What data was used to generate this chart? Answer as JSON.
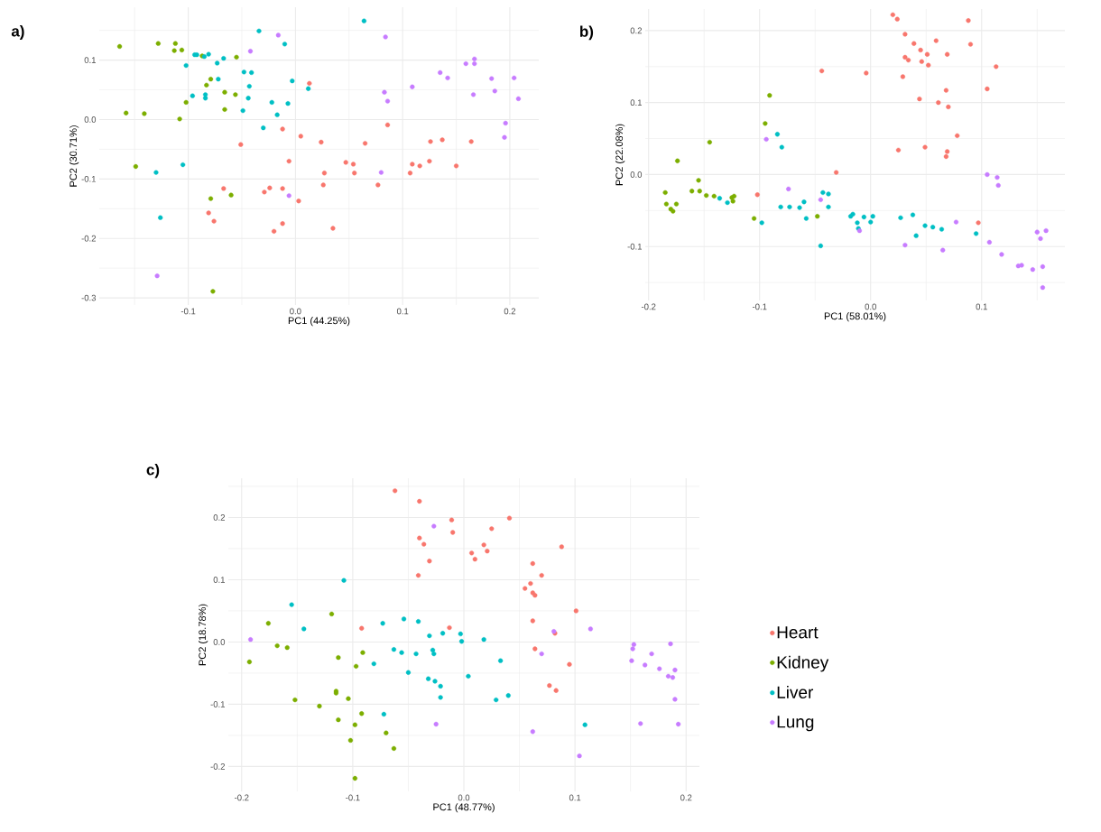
{
  "chart_data": [
    {
      "type": "scatter",
      "title": "**a)**",
      "xlabel": "PC1 (44.25%)",
      "ylabel": "PC2 (30.71%)",
      "grid": true,
      "marker": "circle",
      "legend": false,
      "xlim": [
        -0.183,
        0.227
      ],
      "ylim": [
        -0.312,
        0.189
      ],
      "xticks": [
        {
          "value": -0.1,
          "label": "-0.1"
        },
        {
          "value": 0,
          "label": "0.0"
        },
        {
          "value": 0.1,
          "label": "0.1"
        },
        {
          "value": 0.2,
          "label": "0.2"
        }
      ],
      "yticks": [
        {
          "value": -0.3,
          "label": "-0.3"
        },
        {
          "value": -0.2,
          "label": "-0.2"
        },
        {
          "value": -0.1,
          "label": "-0.1"
        },
        {
          "value": 0,
          "label": "0.0"
        },
        {
          "value": 0.1,
          "label": "0.1"
        }
      ],
      "series": [
        {
          "color": "#f8766d",
          "x": [
            0.013,
            -0.012,
            0.005,
            0.024,
            -0.051,
            -0.006,
            0.027,
            0.026,
            -0.067,
            -0.029,
            -0.024,
            -0.012,
            0.003,
            -0.081,
            -0.076,
            -0.02,
            -0.012,
            0.047,
            0.054,
            0.055,
            0.035,
            0.065,
            0.077,
            0.086,
            0.107,
            0.109,
            0.116,
            0.125,
            0.126,
            0.137,
            0.15,
            0.164
          ],
          "values": [
            0.061,
            -0.016,
            -0.028,
            -0.038,
            -0.042,
            -0.07,
            -0.09,
            -0.11,
            -0.116,
            -0.122,
            -0.115,
            -0.116,
            -0.137,
            -0.157,
            -0.171,
            -0.188,
            -0.175,
            -0.072,
            -0.075,
            -0.09,
            -0.183,
            -0.04,
            -0.11,
            -0.009,
            -0.09,
            -0.075,
            -0.078,
            -0.07,
            -0.037,
            -0.034,
            -0.078,
            -0.037
          ]
        },
        {
          "color": "#7cae00",
          "x": [
            -0.164,
            -0.128,
            -0.112,
            -0.113,
            -0.106,
            -0.087,
            -0.055,
            -0.079,
            -0.083,
            -0.066,
            -0.056,
            -0.102,
            -0.066,
            -0.158,
            -0.141,
            -0.108,
            -0.149,
            -0.079,
            -0.06,
            -0.077
          ],
          "values": [
            0.123,
            0.128,
            0.128,
            0.116,
            0.117,
            0.107,
            0.105,
            0.068,
            0.058,
            0.046,
            0.042,
            0.029,
            0.017,
            0.011,
            0.01,
            0.001,
            -0.079,
            -0.133,
            -0.127,
            -0.289
          ]
        },
        {
          "color": "#00bfc4",
          "x": [
            -0.034,
            -0.01,
            -0.094,
            -0.092,
            -0.085,
            -0.081,
            -0.073,
            -0.067,
            -0.102,
            -0.048,
            -0.041,
            -0.072,
            -0.003,
            -0.043,
            0.012,
            -0.096,
            -0.084,
            -0.084,
            -0.044,
            -0.022,
            -0.007,
            -0.049,
            -0.017,
            -0.03,
            -0.105,
            -0.13,
            -0.126,
            0.064
          ],
          "values": [
            0.149,
            0.127,
            0.109,
            0.109,
            0.106,
            0.11,
            0.095,
            0.103,
            0.091,
            0.08,
            0.079,
            0.068,
            0.065,
            0.056,
            0.052,
            0.04,
            0.042,
            0.036,
            0.036,
            0.029,
            0.027,
            0.015,
            0.008,
            -0.014,
            -0.076,
            -0.089,
            -0.165,
            0.166
          ]
        },
        {
          "color": "#c77cff",
          "x": [
            -0.016,
            -0.042,
            -0.006,
            -0.129,
            0.084,
            0.083,
            0.086,
            0.08,
            0.109,
            0.135,
            0.142,
            0.159,
            0.167,
            0.167,
            0.166,
            0.183,
            0.186,
            0.204,
            0.208,
            0.196,
            0.195
          ],
          "values": [
            0.142,
            0.115,
            -0.128,
            -0.263,
            0.139,
            0.046,
            0.031,
            -0.089,
            0.055,
            0.079,
            0.07,
            0.094,
            0.094,
            0.102,
            0.042,
            0.069,
            0.048,
            0.07,
            0.035,
            -0.006,
            -0.03
          ]
        }
      ]
    },
    {
      "type": "scatter",
      "title": "**b)**",
      "xlabel": "PC1 (58.01%)",
      "ylabel": "PC2 (22.08%)",
      "grid": true,
      "marker": "circle",
      "legend": false,
      "xlim": [
        -0.203,
        0.175
      ],
      "ylim": [
        -0.175,
        0.23
      ],
      "xticks": [
        {
          "value": -0.2,
          "label": "-0.2"
        },
        {
          "value": -0.1,
          "label": "-0.1"
        },
        {
          "value": 0,
          "label": "0.0"
        },
        {
          "value": 0.1,
          "label": "0.1"
        }
      ],
      "yticks": [
        {
          "value": -0.1,
          "label": "-0.1"
        },
        {
          "value": 0,
          "label": "0.0"
        },
        {
          "value": 0.1,
          "label": "0.1"
        },
        {
          "value": 0.2,
          "label": "0.2"
        }
      ],
      "series": [
        {
          "color": "#f8766d",
          "x": [
            -0.102,
            -0.031,
            -0.044,
            0.02,
            0.024,
            0.031,
            0.039,
            0.045,
            0.051,
            0.059,
            0.069,
            0.031,
            0.034,
            0.046,
            0.052,
            -0.004,
            0.029,
            0.068,
            0.044,
            0.061,
            0.07,
            0.078,
            0.025,
            0.049,
            0.069,
            0.068,
            0.088,
            0.09,
            0.113,
            0.105,
            0.097
          ],
          "values": [
            -0.028,
            0.003,
            0.144,
            0.222,
            0.216,
            0.195,
            0.182,
            0.173,
            0.167,
            0.186,
            0.167,
            0.163,
            0.159,
            0.157,
            0.152,
            0.141,
            0.136,
            0.117,
            0.105,
            0.1,
            0.094,
            0.054,
            0.034,
            0.038,
            0.032,
            0.025,
            0.214,
            0.181,
            0.15,
            0.119,
            -0.067
          ]
        },
        {
          "color": "#7cae00",
          "x": [
            -0.185,
            -0.184,
            -0.18,
            -0.178,
            -0.175,
            -0.174,
            -0.161,
            -0.155,
            -0.154,
            -0.148,
            -0.145,
            -0.141,
            -0.125,
            -0.124,
            -0.123,
            -0.105,
            -0.095,
            -0.091,
            -0.048
          ],
          "values": [
            -0.025,
            -0.041,
            -0.048,
            -0.051,
            -0.041,
            0.019,
            -0.023,
            -0.008,
            -0.023,
            -0.029,
            0.045,
            -0.03,
            -0.032,
            -0.037,
            -0.03,
            -0.061,
            0.071,
            0.11,
            -0.058
          ]
        },
        {
          "color": "#00bfc4",
          "x": [
            -0.136,
            -0.129,
            -0.098,
            -0.084,
            -0.08,
            -0.081,
            -0.073,
            -0.064,
            -0.06,
            -0.058,
            -0.045,
            -0.043,
            -0.038,
            -0.038,
            -0.018,
            -0.016,
            -0.012,
            -0.011,
            -0.006,
            0.0,
            0.002,
            0.027,
            0.038,
            0.041,
            0.049,
            0.056,
            0.064,
            0.095
          ],
          "values": [
            -0.033,
            -0.039,
            -0.067,
            0.056,
            0.038,
            -0.045,
            -0.045,
            -0.046,
            -0.038,
            -0.061,
            -0.099,
            -0.025,
            -0.027,
            -0.045,
            -0.058,
            -0.055,
            -0.067,
            -0.075,
            -0.059,
            -0.066,
            -0.058,
            -0.06,
            -0.056,
            -0.085,
            -0.071,
            -0.073,
            -0.076,
            -0.082
          ]
        },
        {
          "color": "#c77cff",
          "x": [
            -0.094,
            -0.074,
            -0.045,
            -0.01,
            0.031,
            0.065,
            0.077,
            0.105,
            0.114,
            0.115,
            0.107,
            0.118,
            0.133,
            0.136,
            0.146,
            0.15,
            0.155,
            0.153,
            0.155,
            0.158
          ],
          "values": [
            0.049,
            -0.02,
            -0.035,
            -0.078,
            -0.098,
            -0.105,
            -0.066,
            0.0,
            -0.004,
            -0.015,
            -0.094,
            -0.111,
            -0.127,
            -0.126,
            -0.132,
            -0.08,
            -0.128,
            -0.089,
            -0.157,
            -0.078
          ]
        }
      ]
    },
    {
      "type": "scatter",
      "title": "**c)**",
      "xlabel": "PC1 (48.77%)",
      "ylabel": "PC2 (18.78%)",
      "grid": true,
      "marker": "circle",
      "legend": "right",
      "xlim": [
        -0.212,
        0.212
      ],
      "ylim": [
        -0.24,
        0.263
      ],
      "xticks": [
        {
          "value": -0.2,
          "label": "-0.2"
        },
        {
          "value": -0.1,
          "label": "-0.1"
        },
        {
          "value": 0,
          "label": "0.0"
        },
        {
          "value": 0.1,
          "label": "0.1"
        },
        {
          "value": 0.2,
          "label": "0.2"
        }
      ],
      "yticks": [
        {
          "value": -0.2,
          "label": "-0.2"
        },
        {
          "value": -0.1,
          "label": "-0.1"
        },
        {
          "value": 0,
          "label": "0.0"
        },
        {
          "value": 0.1,
          "label": "0.1"
        },
        {
          "value": 0.2,
          "label": "0.2"
        }
      ],
      "series": [
        {
          "name": "Heart",
          "color": "#f8766d",
          "x": [
            -0.062,
            -0.04,
            -0.04,
            -0.036,
            -0.031,
            -0.041,
            -0.092,
            -0.011,
            -0.013,
            -0.01,
            0.025,
            0.041,
            0.007,
            0.01,
            0.018,
            0.021,
            0.088,
            0.062,
            0.07,
            0.06,
            0.055,
            0.062,
            0.064,
            0.101,
            0.062,
            0.082,
            0.064,
            0.095,
            0.077,
            0.083
          ],
          "values": [
            0.243,
            0.226,
            0.167,
            0.157,
            0.13,
            0.107,
            0.022,
            0.196,
            0.023,
            0.176,
            0.182,
            0.199,
            0.143,
            0.133,
            0.156,
            0.146,
            0.153,
            0.126,
            0.107,
            0.094,
            0.086,
            0.079,
            0.075,
            0.05,
            0.034,
            0.014,
            -0.011,
            -0.036,
            -0.07,
            -0.078
          ]
        },
        {
          "name": "Kidney",
          "color": "#7cae00",
          "x": [
            -0.193,
            -0.176,
            -0.168,
            -0.159,
            -0.152,
            -0.13,
            -0.119,
            -0.113,
            -0.115,
            -0.115,
            -0.113,
            -0.104,
            -0.102,
            -0.098,
            -0.097,
            -0.098,
            -0.091,
            -0.092,
            -0.07,
            -0.063
          ],
          "values": [
            -0.032,
            0.03,
            -0.006,
            -0.009,
            -0.093,
            -0.103,
            0.045,
            -0.025,
            -0.079,
            -0.082,
            -0.125,
            -0.091,
            -0.158,
            -0.219,
            -0.039,
            -0.133,
            -0.017,
            -0.115,
            -0.146,
            -0.171
          ]
        },
        {
          "name": "Liver",
          "color": "#00bfc4",
          "x": [
            -0.108,
            -0.155,
            -0.144,
            -0.081,
            -0.073,
            -0.072,
            -0.063,
            -0.056,
            -0.054,
            -0.05,
            -0.043,
            -0.041,
            -0.031,
            -0.028,
            -0.027,
            -0.032,
            -0.026,
            -0.021,
            -0.021,
            -0.019,
            -0.003,
            -0.002,
            0.004,
            0.018,
            0.033,
            0.029,
            0.04,
            0.109
          ],
          "values": [
            0.099,
            0.06,
            0.021,
            -0.035,
            0.03,
            -0.116,
            -0.012,
            -0.017,
            0.037,
            -0.049,
            -0.019,
            0.033,
            0.01,
            -0.013,
            -0.019,
            -0.059,
            -0.063,
            -0.071,
            -0.089,
            0.014,
            0.013,
            0.001,
            -0.055,
            0.004,
            -0.03,
            -0.093,
            -0.086,
            -0.133
          ]
        },
        {
          "name": "Lung",
          "color": "#c77cff",
          "x": [
            -0.192,
            -0.027,
            -0.025,
            0.081,
            0.07,
            0.114,
            0.062,
            0.104,
            0.153,
            0.152,
            0.151,
            0.163,
            0.169,
            0.176,
            0.186,
            0.184,
            0.188,
            0.19,
            0.19,
            0.193,
            0.159
          ],
          "values": [
            0.004,
            0.186,
            -0.132,
            0.017,
            -0.019,
            0.021,
            -0.144,
            -0.183,
            -0.004,
            -0.011,
            -0.03,
            -0.037,
            -0.019,
            -0.043,
            -0.003,
            -0.055,
            -0.057,
            -0.045,
            -0.092,
            -0.132,
            -0.131
          ]
        }
      ]
    }
  ]
}
